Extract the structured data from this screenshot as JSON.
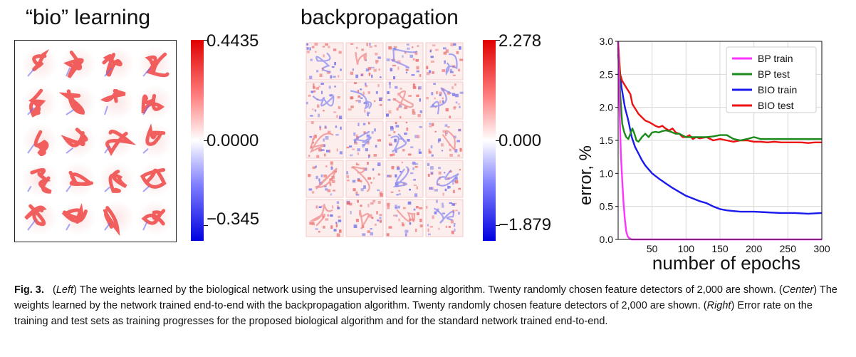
{
  "left_panel": {
    "title": "“bio” learning",
    "cbar_max": "0.4435",
    "cbar_mid": "0.0000",
    "cbar_min": "−0.345"
  },
  "center_panel": {
    "title": "backpropagation",
    "cbar_max": "2.278",
    "cbar_mid": "0.000",
    "cbar_min": "−1.879"
  },
  "colors": {
    "bp_train": "#ff33ff",
    "bp_test": "#1a8a1a",
    "bio_train": "#1a1aee",
    "bio_test": "#ee1111"
  },
  "chart_data": {
    "type": "line",
    "xlabel": "number of epochs",
    "ylabel": "error, %",
    "xlim": [
      0,
      300
    ],
    "ylim": [
      0.0,
      3.0
    ],
    "x_ticks": [
      50,
      100,
      150,
      200,
      250,
      300
    ],
    "y_ticks": [
      0.0,
      0.5,
      1.0,
      1.5,
      2.0,
      2.5,
      3.0
    ],
    "grid": true,
    "legend_position": "top-right",
    "series": [
      {
        "name": "BP train",
        "color": "#ff33ff",
        "points": [
          [
            0,
            3.0
          ],
          [
            2,
            2.0
          ],
          [
            4,
            1.3
          ],
          [
            6,
            0.9
          ],
          [
            8,
            0.55
          ],
          [
            10,
            0.3
          ],
          [
            12,
            0.12
          ],
          [
            14,
            0.05
          ],
          [
            16,
            0.02
          ],
          [
            20,
            0.0
          ],
          [
            30,
            0.0
          ],
          [
            50,
            0.0
          ],
          [
            100,
            0.0
          ],
          [
            150,
            0.0
          ],
          [
            200,
            0.0
          ],
          [
            250,
            0.0
          ],
          [
            300,
            0.0
          ]
        ]
      },
      {
        "name": "BP test",
        "color": "#1a8a1a",
        "points": [
          [
            0,
            2.9
          ],
          [
            3,
            2.2
          ],
          [
            6,
            1.75
          ],
          [
            9,
            1.62
          ],
          [
            12,
            1.55
          ],
          [
            15,
            1.52
          ],
          [
            18,
            1.6
          ],
          [
            21,
            1.68
          ],
          [
            24,
            1.6
          ],
          [
            27,
            1.5
          ],
          [
            30,
            1.48
          ],
          [
            35,
            1.55
          ],
          [
            40,
            1.6
          ],
          [
            45,
            1.55
          ],
          [
            50,
            1.62
          ],
          [
            55,
            1.63
          ],
          [
            60,
            1.62
          ],
          [
            65,
            1.64
          ],
          [
            70,
            1.65
          ],
          [
            75,
            1.64
          ],
          [
            80,
            1.62
          ],
          [
            85,
            1.6
          ],
          [
            90,
            1.6
          ],
          [
            100,
            1.55
          ],
          [
            110,
            1.55
          ],
          [
            120,
            1.55
          ],
          [
            130,
            1.55
          ],
          [
            140,
            1.56
          ],
          [
            150,
            1.58
          ],
          [
            160,
            1.58
          ],
          [
            170,
            1.52
          ],
          [
            180,
            1.5
          ],
          [
            190,
            1.52
          ],
          [
            200,
            1.55
          ],
          [
            210,
            1.52
          ],
          [
            220,
            1.52
          ],
          [
            230,
            1.52
          ],
          [
            240,
            1.52
          ],
          [
            250,
            1.52
          ],
          [
            260,
            1.52
          ],
          [
            270,
            1.52
          ],
          [
            280,
            1.52
          ],
          [
            290,
            1.52
          ],
          [
            300,
            1.52
          ]
        ]
      },
      {
        "name": "BIO train",
        "color": "#1a1aee",
        "points": [
          [
            0,
            2.8
          ],
          [
            5,
            2.3
          ],
          [
            10,
            2.0
          ],
          [
            15,
            1.8
          ],
          [
            20,
            1.55
          ],
          [
            25,
            1.4
          ],
          [
            30,
            1.3
          ],
          [
            35,
            1.2
          ],
          [
            40,
            1.12
          ],
          [
            50,
            1.0
          ],
          [
            60,
            0.92
          ],
          [
            70,
            0.85
          ],
          [
            80,
            0.78
          ],
          [
            90,
            0.72
          ],
          [
            100,
            0.66
          ],
          [
            110,
            0.62
          ],
          [
            120,
            0.58
          ],
          [
            130,
            0.55
          ],
          [
            140,
            0.5
          ],
          [
            150,
            0.46
          ],
          [
            160,
            0.44
          ],
          [
            170,
            0.43
          ],
          [
            180,
            0.42
          ],
          [
            200,
            0.42
          ],
          [
            220,
            0.41
          ],
          [
            240,
            0.4
          ],
          [
            260,
            0.4
          ],
          [
            280,
            0.39
          ],
          [
            300,
            0.4
          ]
        ]
      },
      {
        "name": "BIO test",
        "color": "#ee1111",
        "points": [
          [
            0,
            3.0
          ],
          [
            3,
            2.5
          ],
          [
            6,
            2.4
          ],
          [
            9,
            2.35
          ],
          [
            12,
            2.3
          ],
          [
            15,
            2.25
          ],
          [
            18,
            2.2
          ],
          [
            21,
            2.05
          ],
          [
            24,
            2.0
          ],
          [
            27,
            1.95
          ],
          [
            30,
            1.9
          ],
          [
            35,
            1.85
          ],
          [
            40,
            1.8
          ],
          [
            45,
            1.78
          ],
          [
            50,
            1.75
          ],
          [
            55,
            1.72
          ],
          [
            60,
            1.7
          ],
          [
            65,
            1.72
          ],
          [
            70,
            1.68
          ],
          [
            75,
            1.65
          ],
          [
            80,
            1.68
          ],
          [
            85,
            1.62
          ],
          [
            90,
            1.6
          ],
          [
            95,
            1.55
          ],
          [
            100,
            1.55
          ],
          [
            105,
            1.58
          ],
          [
            110,
            1.52
          ],
          [
            115,
            1.55
          ],
          [
            120,
            1.53
          ],
          [
            130,
            1.55
          ],
          [
            140,
            1.5
          ],
          [
            150,
            1.52
          ],
          [
            160,
            1.5
          ],
          [
            170,
            1.48
          ],
          [
            180,
            1.5
          ],
          [
            190,
            1.5
          ],
          [
            200,
            1.48
          ],
          [
            210,
            1.48
          ],
          [
            220,
            1.47
          ],
          [
            230,
            1.48
          ],
          [
            240,
            1.47
          ],
          [
            250,
            1.47
          ],
          [
            260,
            1.47
          ],
          [
            270,
            1.47
          ],
          [
            280,
            1.46
          ],
          [
            290,
            1.47
          ],
          [
            300,
            1.47
          ]
        ]
      }
    ]
  },
  "caption": {
    "label": "Fig. 3.",
    "seg1_open": "(",
    "left": "Left",
    "seg1_close": ") The weights learned by the biological network using the unsupervised learning algorithm. Twenty randomly chosen feature detectors of 2,000 are shown. (",
    "center": "Center",
    "seg2": ") The weights learned by the network trained end-to-end with the backpropagation algorithm. Twenty randomly chosen feature detectors of 2,000 are shown. (",
    "right": "Right",
    "seg3": ") Error rate on the training and test sets as training progresses for the proposed biological algorithm and for the standard network trained end-to-end."
  }
}
